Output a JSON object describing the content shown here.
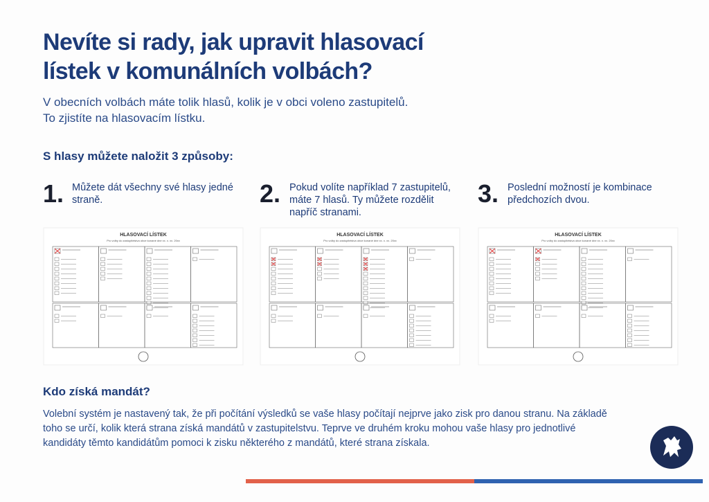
{
  "header": {
    "title_line1": "Nevíte si rady, jak upravit hlasovací",
    "title_line2": "lístek v komunálních volbách?",
    "intro_line1": "V obecních volbách máte tolik hlasů, kolik je v obci voleno zastupitelů.",
    "intro_line2": "To zjistíte na hlasovacím lístku."
  },
  "ways": {
    "heading": "S hlasy můžete naložit 3 způsoby:",
    "steps": [
      {
        "number": "1.",
        "text": "Můžete dát všechny své hlasy jedné straně."
      },
      {
        "number": "2.",
        "text": "Pokud volíte například 7 zastupitelů, máte 7 hlasů. Ty můžete rozdělit napříč stranami."
      },
      {
        "number": "3.",
        "text": "Poslední možností je kombinace předchozích dvou."
      }
    ]
  },
  "ballots": [
    {
      "title": "HLASOVACÍ LÍSTEK",
      "subtitle": "Pro volby do zastupitelstva obce konané dne xx. x. xx. 20xx"
    },
    {
      "title": "HLASOVACÍ LÍSTEK",
      "subtitle": "Pro volby do zastupitelstva obce konané dne xx. x. xx. 20xx"
    },
    {
      "title": "HLASOVACÍ LÍSTEK",
      "subtitle": "Pro volby do zastupitelstva obce konané dne xx. x. xx. 20xx"
    }
  ],
  "mandate": {
    "heading": "Kdo získá mandát?",
    "line1": "Volební systém je nastavený tak, že při počítání výsledků se vaše hlasy počítají nejprve jako zisk pro danou stranu. Na základě",
    "line2": "toho se určí, kolik která strana získá mandátů v zastupitelstvu. Teprve ve druhém kroku mohou vaše hlasy pro jednotlivé",
    "line3": "kandidáty těmto kandidátům pomoci k zisku některého z mandátů, které strana získala."
  }
}
